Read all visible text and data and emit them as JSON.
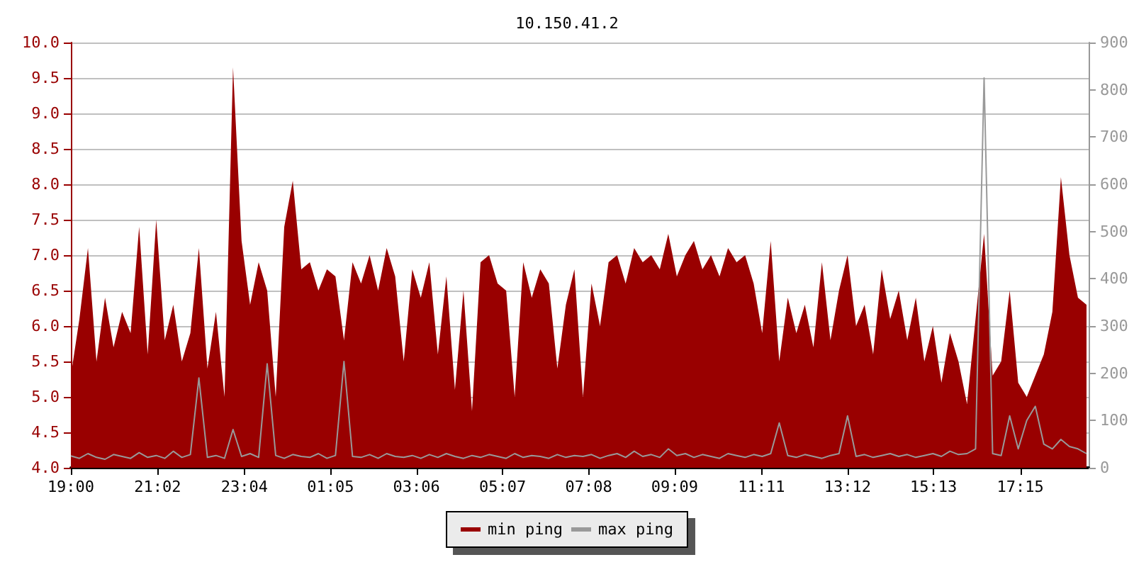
{
  "chart_data": {
    "type": "area",
    "title": "10.150.41.2",
    "x": [
      "--01-01T19:00",
      "--01-01T19:12",
      "--01-01T19:24",
      "--01-01T19:36",
      "--01-01T19:48",
      "--01-01T20:00",
      "--01-01T20:12",
      "--01-01T20:24",
      "--01-01T20:36",
      "--01-01T20:48",
      "--01-01T21:00",
      "--01-01T21:12",
      "--01-01T21:24",
      "--01-01T21:36",
      "--01-01T21:48",
      "--01-01T22:00",
      "--01-01T22:12",
      "--01-01T22:24",
      "--01-01T22:36",
      "--01-01T22:48",
      "--01-01T23:00",
      "--01-01T23:12",
      "--01-01T23:24",
      "--01-01T23:36",
      "--01-01T23:48",
      "--01-02T00:00",
      "--01-02T00:12",
      "--01-02T00:24",
      "--01-02T00:36",
      "--01-02T00:48",
      "--01-02T01:00",
      "--01-02T01:12",
      "--01-02T01:24",
      "--01-02T01:36",
      "--01-02T01:48",
      "--01-02T02:00",
      "--01-02T02:12",
      "--01-02T02:24",
      "--01-02T02:36",
      "--01-02T02:48",
      "--01-02T03:00",
      "--01-02T03:12",
      "--01-02T03:24",
      "--01-02T03:36",
      "--01-02T03:48",
      "--01-02T04:00",
      "--01-02T04:12",
      "--01-02T04:24",
      "--01-02T04:36",
      "--01-02T04:48",
      "--01-02T05:00",
      "--01-02T05:12",
      "--01-02T05:24",
      "--01-02T05:36",
      "--01-02T05:48",
      "--01-02T06:00",
      "--01-02T06:12",
      "--01-02T06:24",
      "--01-02T06:36",
      "--01-02T06:48",
      "--01-02T07:00",
      "--01-02T07:12",
      "--01-02T07:24",
      "--01-02T07:36",
      "--01-02T07:48",
      "--01-02T08:00",
      "--01-02T08:12",
      "--01-02T08:24",
      "--01-02T08:36",
      "--01-02T08:48",
      "--01-02T09:00",
      "--01-02T09:12",
      "--01-02T09:24",
      "--01-02T09:36",
      "--01-02T09:48",
      "--01-02T10:00",
      "--01-02T10:12",
      "--01-02T10:24",
      "--01-02T10:36",
      "--01-02T10:48",
      "--01-02T11:00",
      "--01-02T11:12",
      "--01-02T11:24",
      "--01-02T11:36",
      "--01-02T11:48",
      "--01-02T12:00",
      "--01-02T12:12",
      "--01-02T12:24",
      "--01-02T12:36",
      "--01-02T12:48",
      "--01-02T13:00",
      "--01-02T13:12",
      "--01-02T13:24",
      "--01-02T13:36",
      "--01-02T13:48",
      "--01-02T14:00",
      "--01-02T14:12",
      "--01-02T14:24",
      "--01-02T14:36",
      "--01-02T14:48",
      "--01-02T15:00",
      "--01-02T15:12",
      "--01-02T15:24",
      "--01-02T15:36",
      "--01-02T15:48",
      "--01-02T16:00",
      "--01-02T16:12",
      "--01-02T16:24",
      "--01-02T16:36",
      "--01-02T16:48",
      "--01-02T17:00",
      "--01-02T17:12",
      "--01-02T17:24",
      "--01-02T17:36",
      "--01-02T17:48",
      "--01-02T18:00",
      "--01-02T18:12",
      "--01-02T18:24",
      "--01-02T18:36",
      "--01-02T18:48"
    ],
    "series": [
      {
        "name": "min ping",
        "color": "#990000",
        "values": [
          5.3,
          6.1,
          7.1,
          5.5,
          6.4,
          5.7,
          6.2,
          5.9,
          7.4,
          5.6,
          7.5,
          5.8,
          6.3,
          5.5,
          5.9,
          7.1,
          5.4,
          6.2,
          5.0,
          9.65,
          7.2,
          6.3,
          6.9,
          6.5,
          5.0,
          7.4,
          8.05,
          6.8,
          6.9,
          6.5,
          6.8,
          6.7,
          5.8,
          6.9,
          6.6,
          7.0,
          6.5,
          7.1,
          6.7,
          5.5,
          6.8,
          6.4,
          6.9,
          5.6,
          6.7,
          5.1,
          6.5,
          4.8,
          6.9,
          7.0,
          6.6,
          6.5,
          5.0,
          6.9,
          6.4,
          6.8,
          6.6,
          5.4,
          6.3,
          6.8,
          5.0,
          6.6,
          6.0,
          6.9,
          7.0,
          6.6,
          7.1,
          6.9,
          7.0,
          6.8,
          7.3,
          6.7,
          7.0,
          7.2,
          6.8,
          7.0,
          6.7,
          7.1,
          6.9,
          7.0,
          6.6,
          5.9,
          7.2,
          5.5,
          6.4,
          5.9,
          6.3,
          5.7,
          6.9,
          5.8,
          6.5,
          7.0,
          6.0,
          6.3,
          5.6,
          6.8,
          6.1,
          6.5,
          5.8,
          6.4,
          5.5,
          6.0,
          5.2,
          5.9,
          5.5,
          4.9,
          6.1,
          7.3,
          5.3,
          5.5,
          6.5,
          5.2,
          5.0,
          5.3,
          5.6,
          6.2,
          8.1,
          7.0,
          6.4,
          6.3
        ]
      },
      {
        "name": "max ping",
        "type": "line",
        "axis": "y2",
        "color": "#999999",
        "values": [
          25,
          20,
          30,
          22,
          18,
          28,
          24,
          20,
          32,
          22,
          26,
          20,
          35,
          22,
          28,
          190,
          22,
          26,
          20,
          81,
          24,
          30,
          22,
          220,
          26,
          20,
          28,
          24,
          22,
          30,
          20,
          26,
          225,
          24,
          22,
          28,
          20,
          30,
          24,
          22,
          26,
          20,
          28,
          22,
          30,
          24,
          20,
          26,
          22,
          28,
          24,
          20,
          30,
          22,
          26,
          24,
          20,
          28,
          22,
          26,
          24,
          28,
          20,
          26,
          30,
          22,
          35,
          24,
          28,
          22,
          40,
          26,
          30,
          22,
          28,
          24,
          20,
          30,
          26,
          22,
          28,
          24,
          30,
          95,
          26,
          22,
          28,
          24,
          20,
          26,
          30,
          110,
          24,
          28,
          22,
          26,
          30,
          24,
          28,
          22,
          26,
          30,
          24,
          35,
          28,
          30,
          40,
          825,
          30,
          26,
          110,
          40,
          100,
          130,
          50,
          40,
          60,
          45,
          40,
          30
        ]
      }
    ],
    "xlim": [
      "--01-01T19:00",
      "--01-02T18:51"
    ],
    "xticks": [
      {
        "value": "--01-01T19:00",
        "label": "19:00"
      },
      {
        "value": "--01-01T21:02",
        "label": "21:02"
      },
      {
        "value": "--01-01T23:04",
        "label": "23:04"
      },
      {
        "value": "--01-02T01:05",
        "label": "01:05"
      },
      {
        "value": "--01-02T03:06",
        "label": "03:06"
      },
      {
        "value": "--01-02T05:07",
        "label": "05:07"
      },
      {
        "value": "--01-02T07:08",
        "label": "07:08"
      },
      {
        "value": "--01-02T09:09",
        "label": "09:09"
      },
      {
        "value": "--01-02T11:11",
        "label": "11:11"
      },
      {
        "value": "--01-02T13:12",
        "label": "13:12"
      },
      {
        "value": "--01-02T15:13",
        "label": "15:13"
      },
      {
        "value": "--01-02T17:15",
        "label": "17:15"
      }
    ],
    "ylim": [
      4.0,
      10.0
    ],
    "yticks": [
      {
        "value": 4,
        "label": "4.0"
      },
      {
        "value": 4.5,
        "label": "4.5"
      },
      {
        "value": 5,
        "label": "5.0"
      },
      {
        "value": 5.5,
        "label": "5.5"
      },
      {
        "value": 6,
        "label": "6.0"
      },
      {
        "value": 6.5,
        "label": "6.5"
      },
      {
        "value": 7,
        "label": "7.0"
      },
      {
        "value": 7.5,
        "label": "7.5"
      },
      {
        "value": 8,
        "label": "8.0"
      },
      {
        "value": 8.5,
        "label": "8.5"
      },
      {
        "value": 9,
        "label": "9.0"
      },
      {
        "value": 9.5,
        "label": "9.5"
      },
      {
        "value": 10,
        "label": "10.0"
      }
    ],
    "y2lim": [
      0,
      900
    ],
    "y2ticks": [
      0,
      100,
      200,
      300,
      400,
      500,
      600,
      700,
      800,
      900
    ],
    "grid": "y",
    "legend": "bottom",
    "marker": "none"
  }
}
